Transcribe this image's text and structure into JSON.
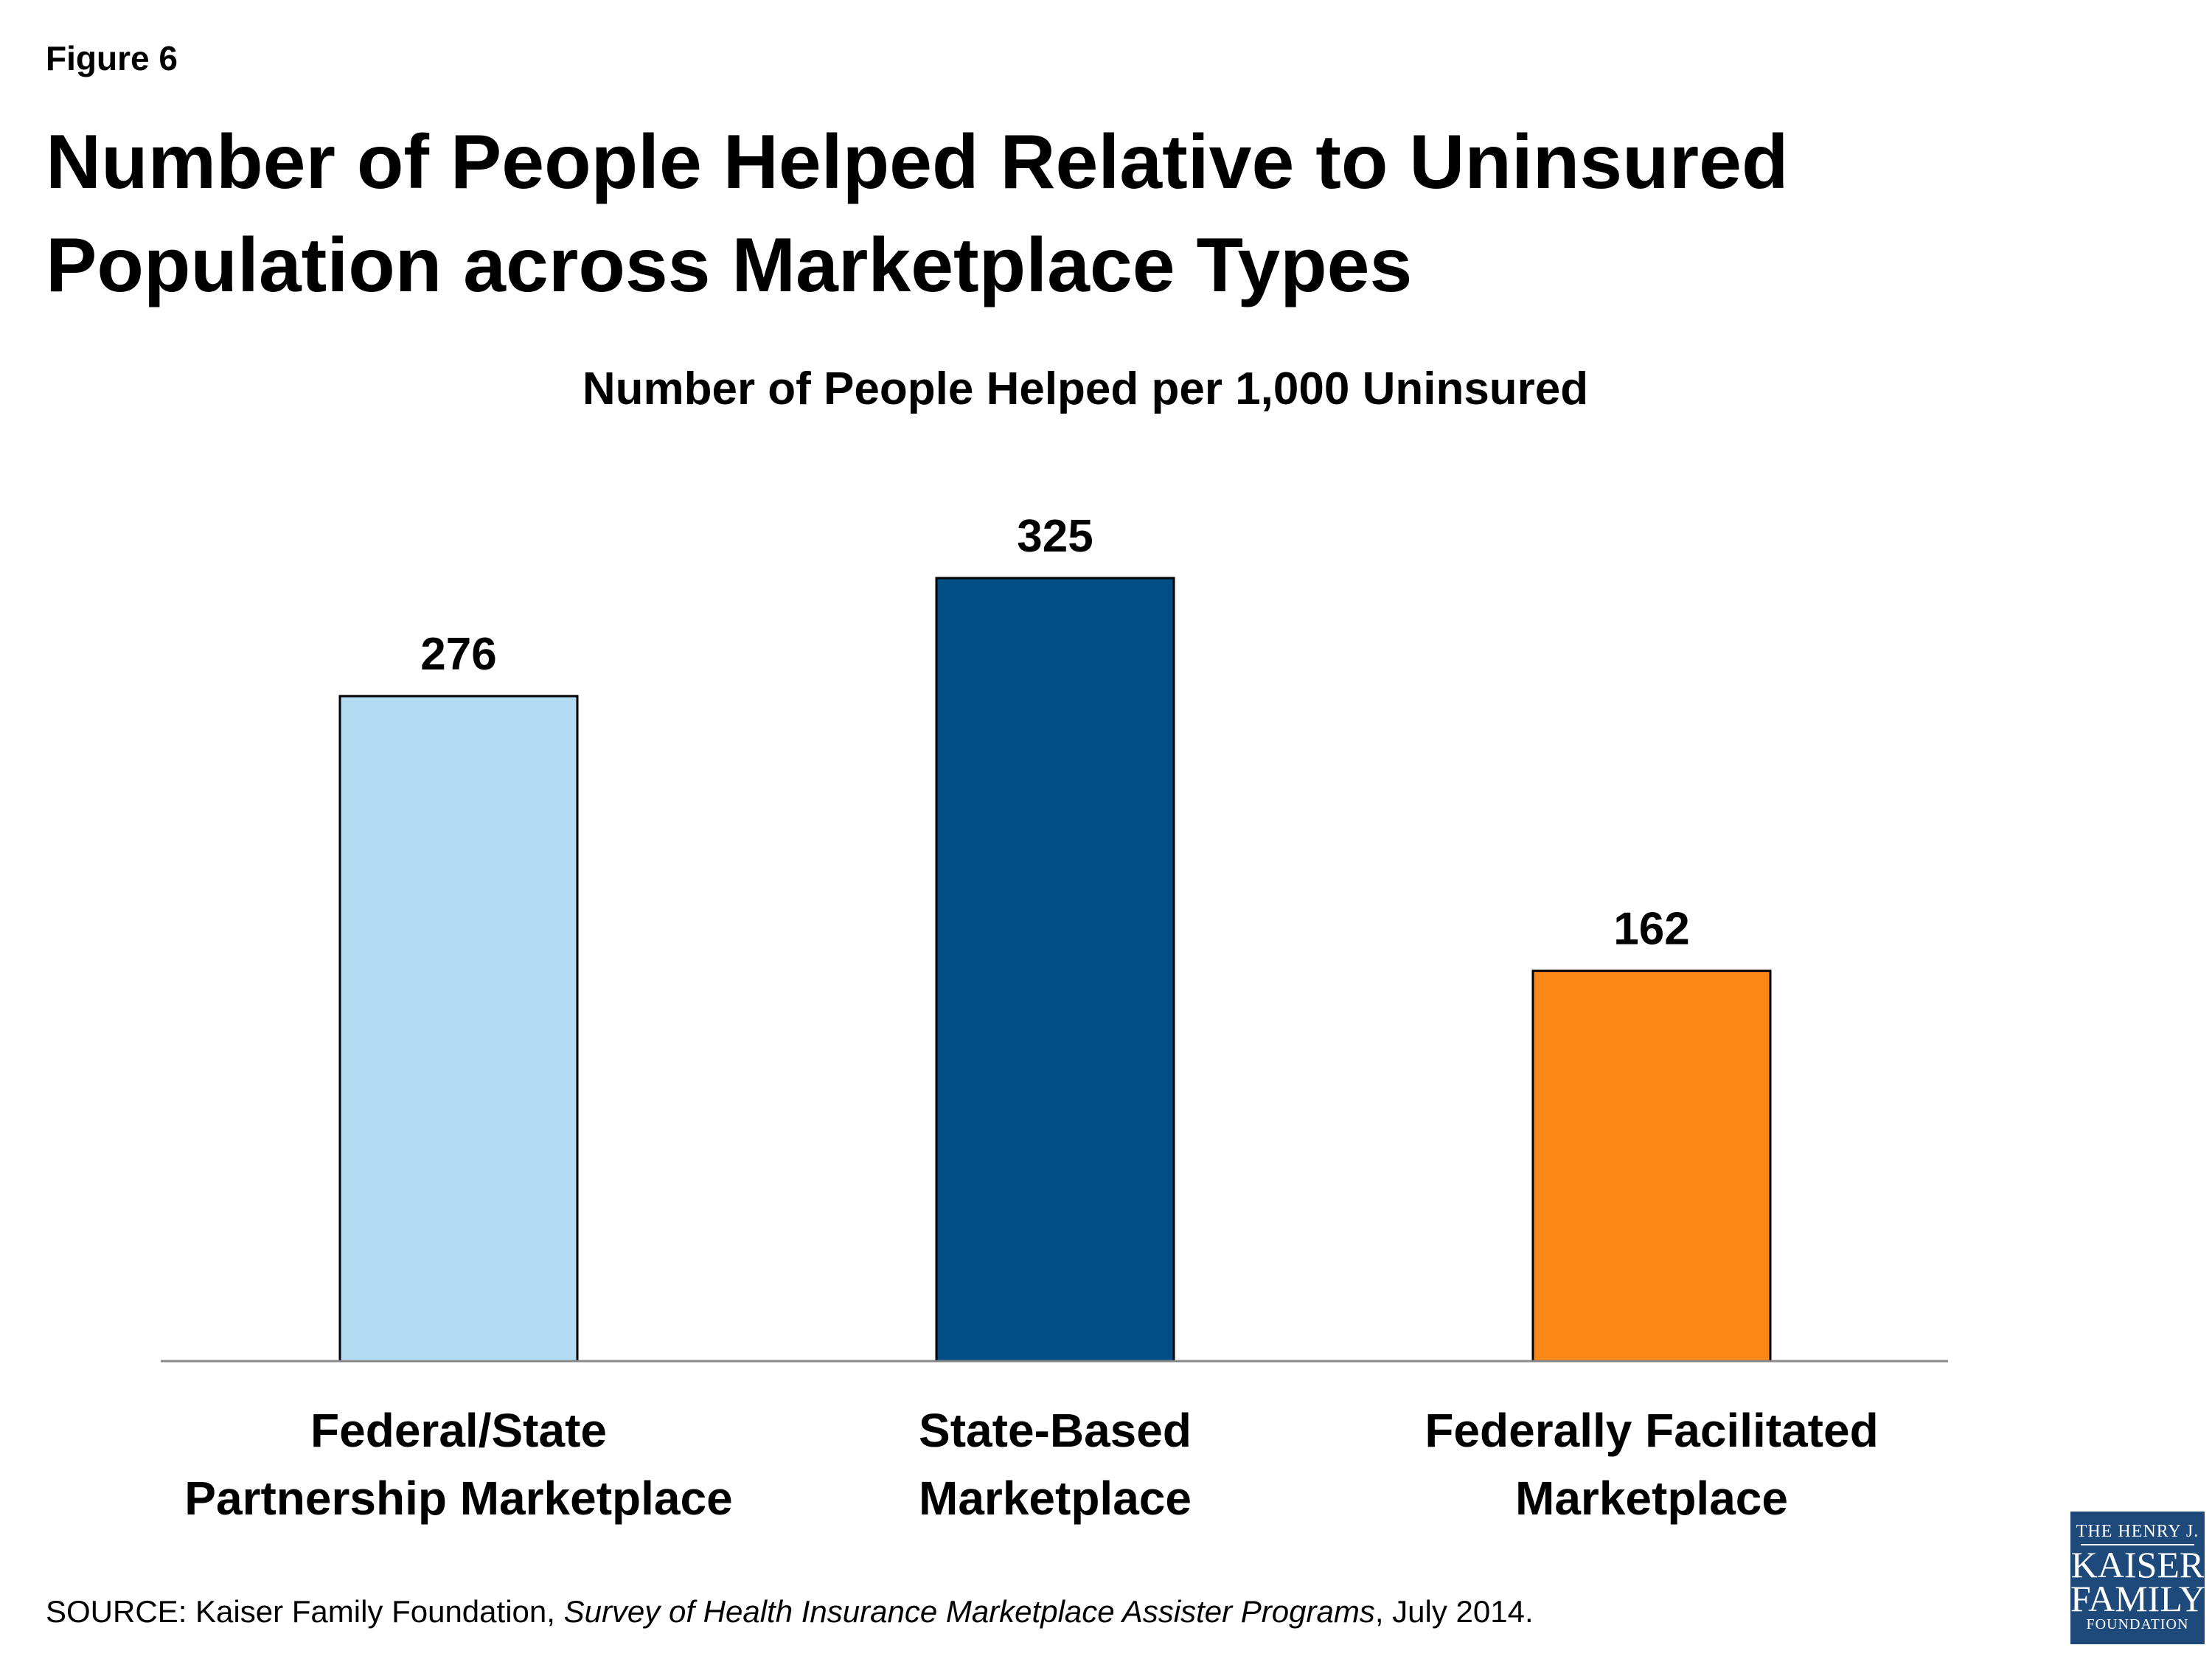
{
  "figure_label": "Figure 6",
  "title": "Number of People Helped Relative to Uninsured Population across Marketplace Types",
  "source": {
    "prefix": "SOURCE: Kaiser Family Foundation, ",
    "italic": "Survey of Health Insurance Marketplace Assister Programs",
    "suffix": ", July 2014."
  },
  "logo": {
    "line1": "THE HENRY J.",
    "line2": "KAISER",
    "line3": "FAMILY",
    "line4": "FOUNDATION",
    "color": "#1d4a7b"
  },
  "chart_data": {
    "type": "bar",
    "title": "Number of People Helped per 1,000 Uninsured",
    "categories": [
      [
        "Federal/State",
        "Partnership Marketplace"
      ],
      [
        "State-Based",
        "Marketplace"
      ],
      [
        "Federally Facilitated",
        "Marketplace"
      ]
    ],
    "values": [
      276,
      325,
      162
    ],
    "colors": [
      "#b3dcf3",
      "#024f86",
      "#fb8816"
    ],
    "xlabel": "",
    "ylabel": "",
    "ylim": [
      0,
      325
    ],
    "grid": false,
    "legend": "none",
    "data_labels": true
  }
}
